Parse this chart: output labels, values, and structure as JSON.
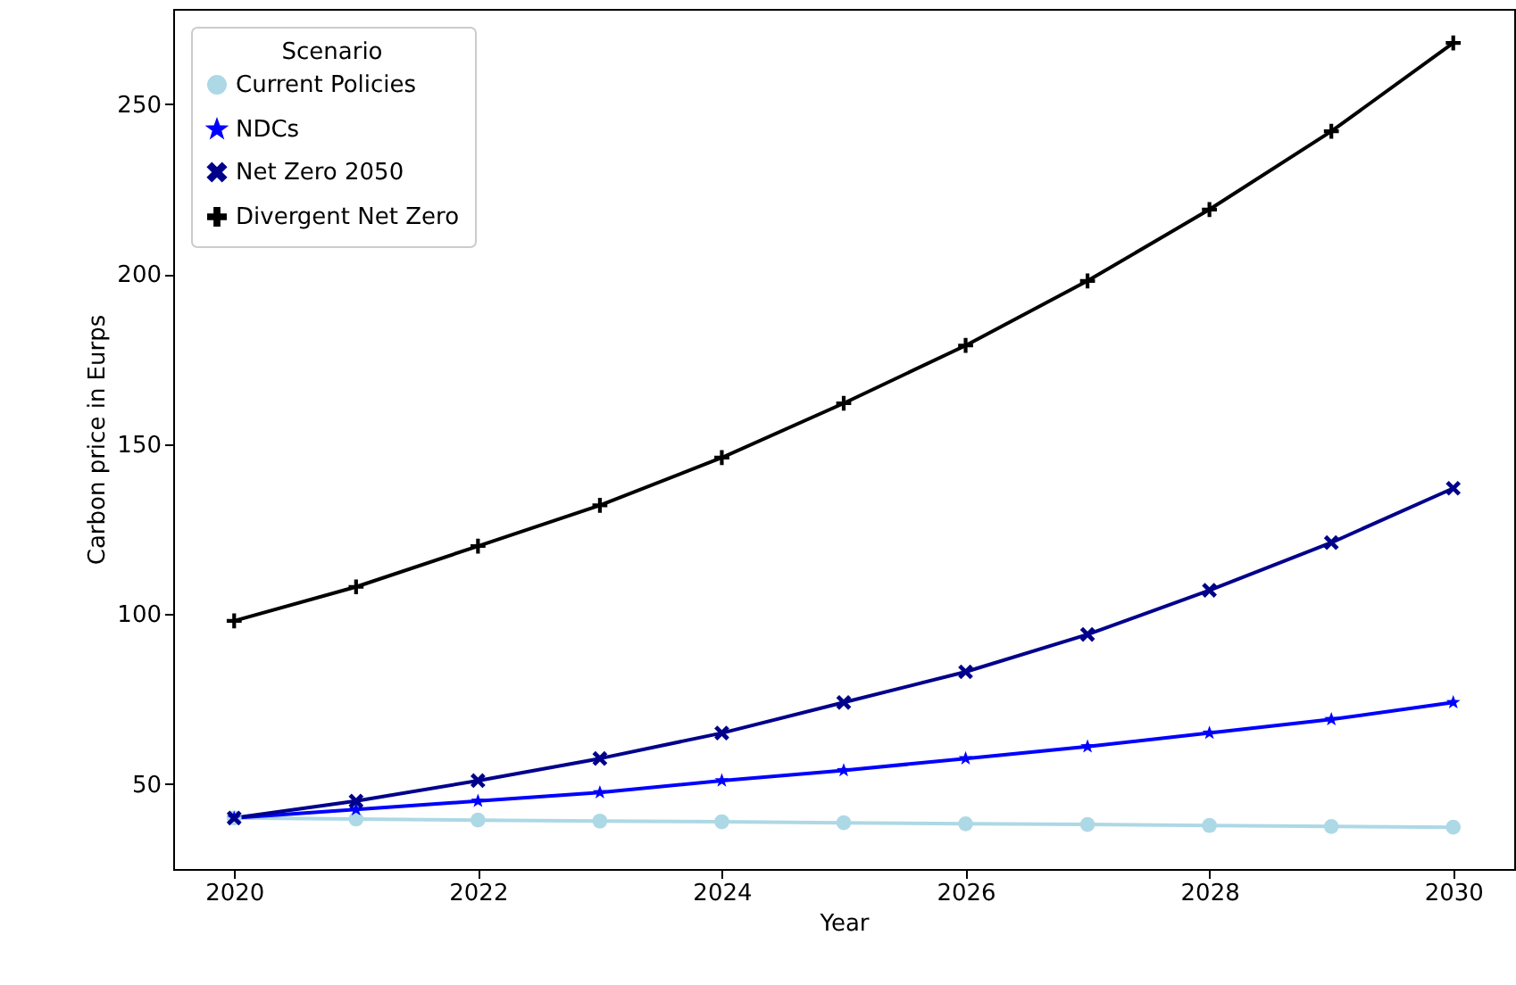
{
  "chart_data": {
    "type": "line",
    "xlabel": "Year",
    "ylabel": "Carbon price in Eurps",
    "legend_title": "Scenario",
    "x": [
      2020,
      2021,
      2022,
      2023,
      2024,
      2025,
      2026,
      2027,
      2028,
      2029,
      2030
    ],
    "series": [
      {
        "name": "Current Policies",
        "color": "#add8e6",
        "marker": "circle",
        "values": [
          40,
          39.7,
          39.4,
          39.1,
          38.9,
          38.6,
          38.3,
          38.1,
          37.8,
          37.5,
          37.3
        ]
      },
      {
        "name": "NDCs",
        "color": "#0000ff",
        "marker": "star",
        "values": [
          40,
          42.5,
          45,
          47.5,
          51,
          54,
          57.5,
          61,
          65,
          69,
          74
        ]
      },
      {
        "name": "Net Zero 2050",
        "color": "#00008b",
        "marker": "x",
        "values": [
          40,
          45,
          51,
          57.5,
          65,
          74,
          83,
          94,
          107,
          121,
          137
        ]
      },
      {
        "name": "Divergent Net Zero",
        "color": "#000000",
        "marker": "cross",
        "values": [
          98,
          108,
          120,
          132,
          146,
          162,
          179,
          198,
          219,
          242,
          268
        ]
      }
    ],
    "xlim": [
      2019.5,
      2030.5
    ],
    "xticks": [
      2020,
      2022,
      2024,
      2026,
      2028,
      2030
    ],
    "ylim": [
      25,
      278
    ],
    "yticks": [
      50,
      100,
      150,
      200,
      250
    ],
    "grid": false,
    "legend": "top left",
    "line_style": "solid"
  }
}
